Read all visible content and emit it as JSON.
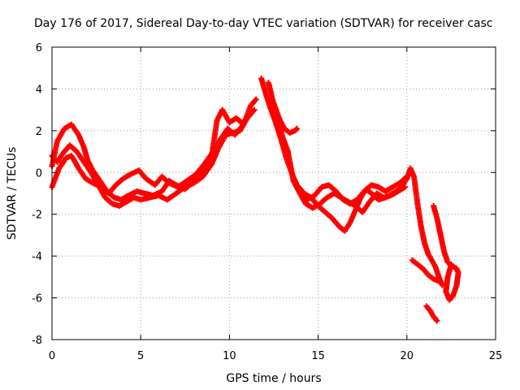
{
  "chart_data": {
    "type": "scatter",
    "title": "Day 176 of 2017, Sidereal Day-to-day VTEC variation (SDTVAR) for receiver casc",
    "xlabel": "GPS time / hours",
    "ylabel": "SDTVAR / TECUs",
    "xlim": [
      0,
      25
    ],
    "ylim": [
      -8,
      6
    ],
    "xticks": [
      0,
      5,
      10,
      15,
      20,
      25
    ],
    "yticks": [
      -8,
      -6,
      -4,
      -2,
      0,
      2,
      4,
      6
    ],
    "grid": true,
    "marker": "+",
    "series": [
      {
        "name": "SDTVAR",
        "color": "#ff0000",
        "tracks": [
          [
            [
              0.0,
              0.3
            ],
            [
              0.3,
              1.5
            ],
            [
              0.7,
              2.1
            ],
            [
              1.1,
              2.3
            ],
            [
              1.5,
              1.8
            ],
            [
              1.8,
              1.2
            ],
            [
              2.0,
              0.6
            ],
            [
              2.3,
              0.1
            ],
            [
              2.7,
              -0.4
            ],
            [
              3.1,
              -0.9
            ],
            [
              3.5,
              -1.2
            ],
            [
              3.9,
              -1.3
            ],
            [
              4.3,
              -1.1
            ],
            [
              4.8,
              -0.9
            ],
            [
              5.2,
              -1.0
            ],
            [
              5.7,
              -1.1
            ],
            [
              6.2,
              -0.9
            ],
            [
              6.6,
              -0.4
            ],
            [
              7.0,
              -0.6
            ],
            [
              7.5,
              -0.8
            ],
            [
              8.0,
              -0.4
            ],
            [
              8.5,
              0.0
            ],
            [
              9.0,
              0.8
            ],
            [
              9.3,
              2.5
            ],
            [
              9.6,
              3.0
            ],
            [
              10.0,
              2.4
            ],
            [
              10.4,
              2.6
            ],
            [
              10.8,
              2.3
            ],
            [
              11.2,
              3.2
            ],
            [
              11.5,
              3.5
            ]
          ],
          [
            [
              0.0,
              0.8
            ],
            [
              0.3,
              0.5
            ],
            [
              0.6,
              0.9
            ],
            [
              1.0,
              1.3
            ],
            [
              1.4,
              1.0
            ],
            [
              1.8,
              0.5
            ],
            [
              2.2,
              0.0
            ],
            [
              2.6,
              -0.6
            ],
            [
              3.0,
              -1.2
            ],
            [
              3.4,
              -1.5
            ],
            [
              3.8,
              -1.6
            ],
            [
              4.2,
              -1.4
            ],
            [
              4.6,
              -1.2
            ],
            [
              5.0,
              -1.3
            ],
            [
              5.5,
              -1.2
            ],
            [
              6.0,
              -1.1
            ],
            [
              6.5,
              -1.3
            ],
            [
              7.0,
              -1.0
            ],
            [
              7.5,
              -0.7
            ],
            [
              8.0,
              -0.5
            ],
            [
              8.5,
              -0.2
            ],
            [
              9.0,
              0.4
            ],
            [
              9.4,
              1.2
            ],
            [
              9.8,
              1.8
            ],
            [
              10.2,
              1.9
            ],
            [
              10.6,
              2.0
            ],
            [
              11.0,
              2.6
            ],
            [
              11.4,
              3.0
            ]
          ],
          [
            [
              0.0,
              -0.7
            ],
            [
              0.4,
              0.2
            ],
            [
              0.8,
              0.7
            ],
            [
              1.1,
              0.8
            ],
            [
              1.5,
              0.2
            ],
            [
              1.9,
              -0.3
            ],
            [
              2.3,
              -0.5
            ],
            [
              2.8,
              -0.7
            ],
            [
              3.2,
              -1.0
            ],
            [
              3.6,
              -0.6
            ],
            [
              4.0,
              -0.3
            ],
            [
              4.4,
              -0.1
            ],
            [
              4.9,
              0.1
            ],
            [
              5.3,
              -0.3
            ],
            [
              5.8,
              -0.6
            ],
            [
              6.2,
              -0.2
            ],
            [
              6.6,
              -0.5
            ],
            [
              7.1,
              -0.7
            ],
            [
              7.6,
              -0.4
            ],
            [
              8.1,
              -0.1
            ],
            [
              8.5,
              0.3
            ],
            [
              9.0,
              0.9
            ],
            [
              9.5,
              1.6
            ],
            [
              9.9,
              2.1
            ],
            [
              10.3,
              1.8
            ],
            [
              10.7,
              2.2
            ],
            [
              11.1,
              2.8
            ]
          ],
          [
            [
              11.8,
              4.5
            ],
            [
              12.0,
              3.9
            ],
            [
              12.3,
              3.1
            ],
            [
              12.6,
              2.4
            ],
            [
              12.9,
              1.6
            ],
            [
              13.2,
              0.7
            ],
            [
              13.5,
              0.0
            ],
            [
              13.8,
              -0.6
            ],
            [
              14.2,
              -1.0
            ],
            [
              14.6,
              -1.2
            ],
            [
              15.0,
              -1.6
            ],
            [
              15.4,
              -1.9
            ],
            [
              15.8,
              -2.2
            ],
            [
              16.2,
              -2.6
            ],
            [
              16.5,
              -2.8
            ],
            [
              16.8,
              -2.4
            ],
            [
              17.1,
              -1.8
            ],
            [
              17.4,
              -1.2
            ],
            [
              17.7,
              -0.8
            ],
            [
              18.0,
              -1.0
            ],
            [
              18.4,
              -1.3
            ],
            [
              18.8,
              -1.2
            ],
            [
              19.2,
              -1.0
            ],
            [
              19.6,
              -0.8
            ],
            [
              20.0,
              -0.3
            ],
            [
              20.2,
              0.2
            ],
            [
              20.4,
              -0.2
            ],
            [
              20.6,
              -1.5
            ],
            [
              20.8,
              -2.6
            ],
            [
              21.0,
              -3.4
            ],
            [
              21.2,
              -3.9
            ],
            [
              21.4,
              -4.2
            ],
            [
              21.6,
              -4.5
            ],
            [
              21.8,
              -5.0
            ],
            [
              22.0,
              -5.4
            ]
          ],
          [
            [
              12.2,
              4.3
            ],
            [
              12.4,
              3.6
            ],
            [
              12.7,
              2.6
            ],
            [
              13.0,
              1.7
            ],
            [
              13.3,
              1.0
            ],
            [
              13.6,
              -0.4
            ],
            [
              13.9,
              -0.9
            ],
            [
              14.3,
              -1.5
            ],
            [
              14.7,
              -1.7
            ],
            [
              15.1,
              -1.5
            ],
            [
              15.5,
              -1.2
            ],
            [
              15.9,
              -1.0
            ],
            [
              16.3,
              -1.2
            ],
            [
              16.7,
              -1.4
            ],
            [
              17.1,
              -1.6
            ],
            [
              17.5,
              -1.9
            ],
            [
              17.9,
              -1.4
            ],
            [
              18.3,
              -1.0
            ],
            [
              18.7,
              -1.2
            ],
            [
              19.1,
              -1.1
            ],
            [
              19.5,
              -0.9
            ],
            [
              19.9,
              -0.7
            ]
          ],
          [
            [
              12.5,
              3.3
            ],
            [
              12.8,
              2.6
            ],
            [
              13.1,
              2.1
            ],
            [
              13.4,
              1.9
            ],
            [
              13.7,
              2.0
            ],
            [
              13.8,
              2.1
            ]
          ],
          [
            [
              14.0,
              -0.8
            ],
            [
              14.4,
              -1.3
            ],
            [
              14.8,
              -1.1
            ],
            [
              15.2,
              -0.7
            ],
            [
              15.6,
              -0.6
            ],
            [
              16.0,
              -0.9
            ],
            [
              16.4,
              -1.3
            ],
            [
              16.8,
              -1.5
            ],
            [
              17.2,
              -1.3
            ],
            [
              17.6,
              -0.9
            ],
            [
              18.0,
              -0.6
            ],
            [
              18.4,
              -0.7
            ],
            [
              18.8,
              -0.9
            ],
            [
              19.2,
              -0.7
            ],
            [
              19.6,
              -0.5
            ],
            [
              20.0,
              -0.2
            ]
          ],
          [
            [
              20.3,
              -4.2
            ],
            [
              20.6,
              -4.4
            ],
            [
              20.9,
              -4.6
            ],
            [
              21.2,
              -4.9
            ],
            [
              21.5,
              -5.1
            ],
            [
              21.8,
              -5.2
            ]
          ],
          [
            [
              21.5,
              -1.6
            ],
            [
              21.7,
              -2.2
            ],
            [
              21.9,
              -3.0
            ],
            [
              22.1,
              -3.8
            ],
            [
              22.3,
              -4.3
            ],
            [
              22.6,
              -4.5
            ],
            [
              22.8,
              -4.6
            ],
            [
              22.9,
              -4.8
            ],
            [
              22.8,
              -5.4
            ],
            [
              22.6,
              -5.9
            ],
            [
              22.4,
              -6.1
            ],
            [
              22.2,
              -5.7
            ],
            [
              22.3,
              -5.0
            ],
            [
              22.5,
              -4.4
            ]
          ],
          [
            [
              21.1,
              -6.4
            ],
            [
              21.3,
              -6.6
            ],
            [
              21.5,
              -6.9
            ],
            [
              21.7,
              -7.1
            ]
          ]
        ]
      }
    ]
  }
}
